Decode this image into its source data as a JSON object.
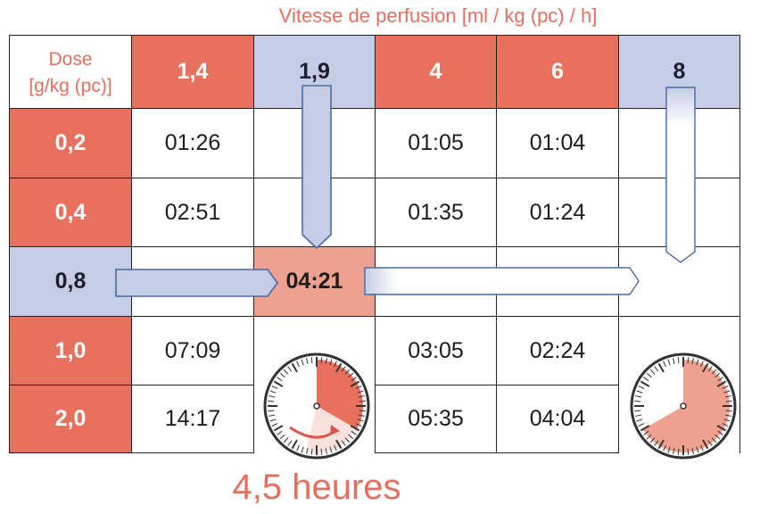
{
  "title": "Vitesse de perfusion [ml / kg (pc) / h]",
  "dose_header": {
    "line1": "Dose",
    "line2": "[g/kg (pc)]"
  },
  "rates": [
    "1,4",
    "1,9",
    "4",
    "6",
    "8"
  ],
  "rows": [
    {
      "dose": "0,2",
      "cells": [
        "01:26",
        "",
        "01:05",
        "01:04",
        ""
      ]
    },
    {
      "dose": "0,4",
      "cells": [
        "02:51",
        "",
        "01:35",
        "01:24",
        ""
      ]
    },
    {
      "dose": "0,8",
      "cells": [
        "",
        "04:21",
        "",
        "",
        ""
      ]
    },
    {
      "dose": "1,0",
      "cells": [
        "07:09",
        "",
        "03:05",
        "02:24",
        ""
      ]
    },
    {
      "dose": "2,0",
      "cells": [
        "14:17",
        "",
        "05:35",
        "04:04",
        ""
      ]
    }
  ],
  "footer": "4,5 heures",
  "colors": {
    "accent": "#e8705f",
    "highlight_blue": "#c5cce6",
    "result": "#efa18f"
  },
  "clocks": [
    {
      "name": "clock-4-5-hours",
      "hours_fraction": 0.375
    },
    {
      "name": "clock-8-hours",
      "hours_fraction": 0.6667
    }
  ]
}
